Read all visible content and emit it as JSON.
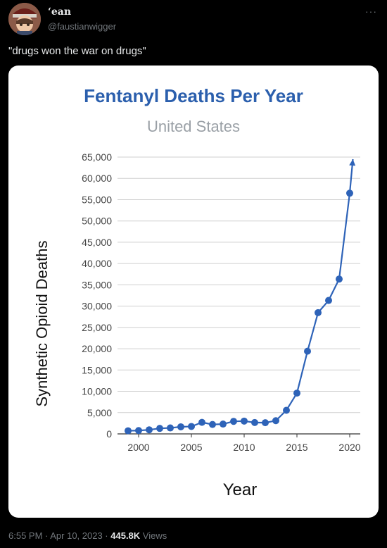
{
  "tweet": {
    "author_name": "ʻean",
    "handle": "@faustianwigger",
    "text": "\"drugs won the war on drugs\"",
    "more_icon": "more-horizontal-icon",
    "timestamp": "6:55 PM · Apr 10, 2023 · ",
    "views_count": "445.8K",
    "views_label": " Views"
  },
  "colors": {
    "background": "#000000",
    "title": "#2b5fad",
    "line": "#2e63b8",
    "subtitle": "#9aa0a6"
  },
  "chart_data": {
    "type": "line",
    "title": "Fentanyl Deaths Per Year",
    "subtitle": "United States",
    "xlabel": "Year",
    "ylabel": "Synthetic Opioid Deaths",
    "xlim": [
      1998,
      2021
    ],
    "ylim": [
      0,
      65000
    ],
    "x_ticks": [
      2000,
      2005,
      2010,
      2015,
      2020
    ],
    "x_tick_labels": [
      "2000",
      "2005",
      "2010",
      "2015",
      "2020"
    ],
    "y_ticks": [
      0,
      5000,
      10000,
      15000,
      20000,
      25000,
      30000,
      35000,
      40000,
      45000,
      50000,
      55000,
      60000,
      65000
    ],
    "y_tick_labels": [
      "0",
      "5,000",
      "10,000",
      "15,000",
      "20,000",
      "25,000",
      "30,000",
      "35,000",
      "40,000",
      "45,000",
      "50,000",
      "55,000",
      "60,000",
      "65,000"
    ],
    "grid": true,
    "series": [
      {
        "x": [
          1999,
          2000,
          2001,
          2002,
          2003,
          2004,
          2005,
          2006,
          2007,
          2008,
          2009,
          2010,
          2011,
          2012,
          2013,
          2014,
          2015,
          2016,
          2017,
          2018,
          2019,
          2020
        ],
        "values": [
          730,
          782,
          957,
          1295,
          1400,
          1664,
          1742,
          2707,
          2213,
          2306,
          2946,
          3007,
          2666,
          2628,
          3105,
          5544,
          9580,
          19413,
          28466,
          31335,
          36359,
          56516
        ]
      }
    ],
    "arrow_end": [
      2020.3,
      64500
    ]
  }
}
